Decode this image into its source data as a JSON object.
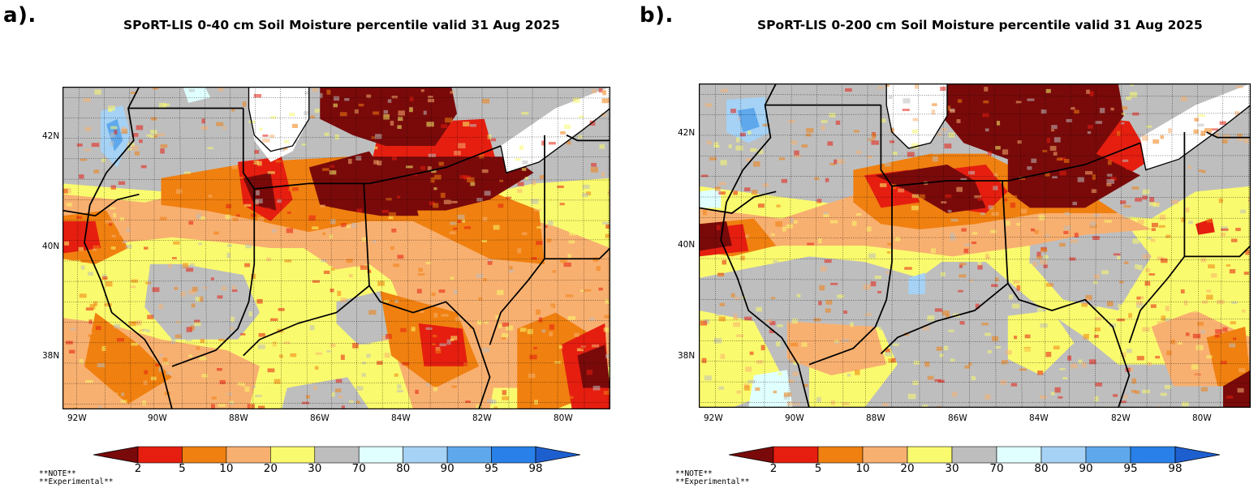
{
  "panels": [
    {
      "id": "a",
      "letter": "a).",
      "title": "SPoRT-LIS 0-40 cm Soil Moisture percentile valid 31 Aug 2025",
      "lat_labels": [
        "42N",
        "40N",
        "38N"
      ],
      "lon_labels": [
        "92W",
        "90W",
        "88W",
        "86W",
        "84W",
        "82W",
        "80W"
      ],
      "notes": [
        "**NOTE**",
        "**Experimental**"
      ]
    },
    {
      "id": "b",
      "letter": "b).",
      "title": "SPoRT-LIS 0-200 cm Soil Moisture percentile valid 31 Aug 2025",
      "lat_labels": [
        "42N",
        "40N",
        "38N"
      ],
      "lon_labels": [
        "92W",
        "90W",
        "88W",
        "86W",
        "84W",
        "82W",
        "80W"
      ],
      "notes": [
        "**NOTE**",
        "**Experimental**"
      ]
    }
  ],
  "colorbar": {
    "labels": [
      "2",
      "5",
      "10",
      "20",
      "30",
      "70",
      "80",
      "90",
      "95",
      "98"
    ],
    "colors": [
      "#7a0a0a",
      "#e51e10",
      "#f08010",
      "#f8b070",
      "#fafa6e",
      "#bebebe",
      "#e0ffff",
      "#a5d2f5",
      "#5fa8ec",
      "#2880e8",
      "#1e5fd0"
    ]
  },
  "palette": {
    "water": "#ffffff",
    "severe_dry": "#7a0a0a",
    "very_dry": "#e51e10",
    "dry": "#f08010",
    "moderate_dry": "#f8b070",
    "slightly_dry": "#fafa6e",
    "normal": "#bebebe",
    "slightly_wet": "#e0ffff",
    "wet": "#a5d2f5",
    "very_wet": "#5fa8ec"
  }
}
